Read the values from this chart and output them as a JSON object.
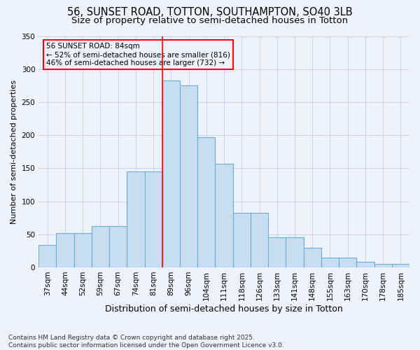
{
  "title1": "56, SUNSET ROAD, TOTTON, SOUTHAMPTON, SO40 3LB",
  "title2": "Size of property relative to semi-detached houses in Totton",
  "xlabel": "Distribution of semi-detached houses by size in Totton",
  "ylabel": "Number of semi-detached properties",
  "categories": [
    "37sqm",
    "44sqm",
    "52sqm",
    "59sqm",
    "67sqm",
    "74sqm",
    "81sqm",
    "89sqm",
    "96sqm",
    "104sqm",
    "111sqm",
    "118sqm",
    "126sqm",
    "133sqm",
    "141sqm",
    "148sqm",
    "155sqm",
    "163sqm",
    "170sqm",
    "178sqm",
    "185sqm"
  ],
  "bar_values": [
    34,
    52,
    52,
    62,
    62,
    145,
    145,
    283,
    275,
    197,
    157,
    83,
    83,
    46,
    45,
    30,
    15,
    15,
    8,
    5,
    5
  ],
  "bar_color": "#c8ddf2",
  "bar_edge_color": "#6aaed6",
  "annotation_title": "56 SUNSET ROAD: 84sqm",
  "annotation_line1": "← 52% of semi-detached houses are smaller (816)",
  "annotation_line2": "46% of semi-detached houses are larger (732) →",
  "red_line_index": 7.5,
  "ylim": [
    0,
    350
  ],
  "yticks": [
    0,
    50,
    100,
    150,
    200,
    250,
    300,
    350
  ],
  "footer1": "Contains HM Land Registry data © Crown copyright and database right 2025.",
  "footer2": "Contains public sector information licensed under the Open Government Licence v3.0.",
  "bg_color": "#eef2fb",
  "grid_color": "#c8cfe8",
  "title1_fontsize": 10.5,
  "title2_fontsize": 9.5,
  "tick_fontsize": 7.5,
  "ylabel_fontsize": 8,
  "xlabel_fontsize": 9
}
